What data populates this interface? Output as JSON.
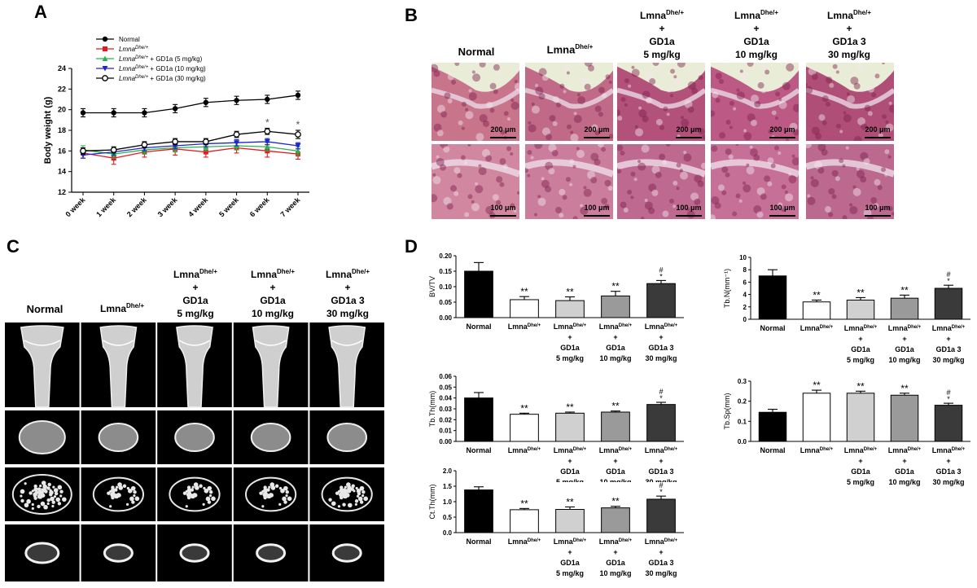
{
  "panels": {
    "a": "A",
    "b": "B",
    "c": "C",
    "d": "D"
  },
  "groups": {
    "normal": "Normal",
    "lmna": "Lmna",
    "sup": "Dhe/+",
    "plus": "+",
    "gd1a": "GD1a",
    "gd1a3": "GD1a 3",
    "d5": "5 mg/kg",
    "d10": "10 mg/kg",
    "d30": "30 mg/kg"
  },
  "legend": {
    "normal": "Normal",
    "lmna_italic": "Lmna",
    "sup": "Dhe/+",
    "gd5": "+ GD1a (5 mg/kg)",
    "gd10": "+ GD1a (10 mg/kg)",
    "gd30": "+ GD1a (30 mg/kg)"
  },
  "scalebars": {
    "top": "200 μm",
    "bottom": "100 μm"
  },
  "colors": {
    "normal": "#000000",
    "lmna": "#e8171f",
    "gd5": "#2ab34a",
    "gd10": "#1d24d6",
    "gd30": "#000000"
  },
  "chart_data": [
    {
      "type": "line",
      "ylabel": "Body weight (g)",
      "x": [
        "0 week",
        "1 week",
        "2 week",
        "3 week",
        "4 week",
        "5 week",
        "6 week",
        "7 week"
      ],
      "ylim": [
        12,
        24
      ],
      "yticks": [
        12,
        14,
        16,
        18,
        20,
        22,
        24
      ],
      "series": [
        {
          "name": "Normal",
          "values": [
            19.7,
            19.7,
            19.7,
            20.1,
            20.7,
            20.9,
            21.0,
            21.4
          ],
          "err": [
            0.4,
            0.4,
            0.4,
            0.4,
            0.4,
            0.4,
            0.4,
            0.4
          ]
        },
        {
          "name": "LmnaDhe/+",
          "values": [
            15.8,
            15.3,
            15.9,
            16.2,
            15.9,
            16.3,
            16.0,
            15.7
          ],
          "err": [
            0.5,
            0.6,
            0.5,
            0.6,
            0.5,
            0.5,
            0.6,
            0.5
          ]
        },
        {
          "name": "LmnaDhe/+ + GD1a (5 mg/kg)",
          "values": [
            16.1,
            15.7,
            16.1,
            16.3,
            16.4,
            16.5,
            16.4,
            16.0
          ],
          "err": [
            0.4,
            0.4,
            0.4,
            0.4,
            0.4,
            0.4,
            0.4,
            0.4
          ]
        },
        {
          "name": "LmnaDhe/+ + GD1a (10 mg/kg)",
          "values": [
            15.6,
            15.9,
            16.3,
            16.5,
            16.7,
            16.8,
            16.9,
            16.5
          ],
          "err": [
            0.3,
            0.3,
            0.3,
            0.3,
            0.3,
            0.3,
            0.3,
            0.3
          ]
        },
        {
          "name": "LmnaDhe/+ + GD1a (30 mg/kg)",
          "values": [
            16.0,
            16.1,
            16.6,
            16.9,
            16.9,
            17.6,
            17.9,
            17.6
          ],
          "err": [
            0.3,
            0.3,
            0.3,
            0.3,
            0.3,
            0.3,
            0.3,
            0.4
          ]
        }
      ],
      "annotations": [
        {
          "x": "6 week",
          "text": "*"
        },
        {
          "x": "7 week",
          "text": "*"
        }
      ]
    },
    {
      "type": "bar",
      "ylabel": "BV/TV",
      "ylim": [
        0,
        0.2
      ],
      "yticks": [
        "0.00",
        "0.05",
        "0.10",
        "0.15",
        "0.20"
      ],
      "values": [
        0.15,
        0.058,
        0.055,
        0.07,
        0.11
      ],
      "err": [
        0.028,
        0.01,
        0.012,
        0.015,
        0.01
      ],
      "marks": [
        "",
        "**",
        "**",
        "**",
        "#\n*"
      ]
    },
    {
      "type": "bar",
      "ylabel": "Tb.N(mm⁻¹)",
      "ylim": [
        0,
        10
      ],
      "yticks": [
        "0",
        "2",
        "4",
        "6",
        "8",
        "10"
      ],
      "values": [
        7.0,
        2.8,
        3.1,
        3.4,
        5.0
      ],
      "err": [
        1.0,
        0.3,
        0.4,
        0.5,
        0.5
      ],
      "marks": [
        "",
        "**",
        "**",
        "**",
        "#\n*"
      ]
    },
    {
      "type": "bar",
      "ylabel": "Tb.Th(mm)",
      "ylim": [
        0,
        0.06
      ],
      "yticks": [
        "0.00",
        "0.01",
        "0.02",
        "0.03",
        "0.04",
        "0.05",
        "0.06"
      ],
      "values": [
        0.04,
        0.025,
        0.026,
        0.027,
        0.034
      ],
      "err": [
        0.005,
        0.001,
        0.001,
        0.001,
        0.002
      ],
      "marks": [
        "",
        "**",
        "**",
        "**",
        "#\n*"
      ]
    },
    {
      "type": "bar",
      "ylabel": "Tb.Sp(mm)",
      "ylim": [
        0,
        0.3
      ],
      "yticks": [
        "0.0",
        "0.1",
        "0.2",
        "0.3"
      ],
      "values": [
        0.145,
        0.24,
        0.24,
        0.23,
        0.18
      ],
      "err": [
        0.015,
        0.015,
        0.01,
        0.01,
        0.01
      ],
      "marks": [
        "",
        "**",
        "**",
        "**",
        "#\n*"
      ]
    },
    {
      "type": "bar",
      "ylabel": "Ct.Th(mm)",
      "ylim": [
        0,
        2.0
      ],
      "yticks": [
        "0.0",
        "0.5",
        "1.0",
        "1.5",
        "2.0"
      ],
      "values": [
        1.38,
        0.74,
        0.75,
        0.8,
        1.08
      ],
      "err": [
        0.1,
        0.04,
        0.08,
        0.05,
        0.1
      ],
      "marks": [
        "",
        "**",
        "**",
        "**",
        "#\n*"
      ]
    }
  ]
}
